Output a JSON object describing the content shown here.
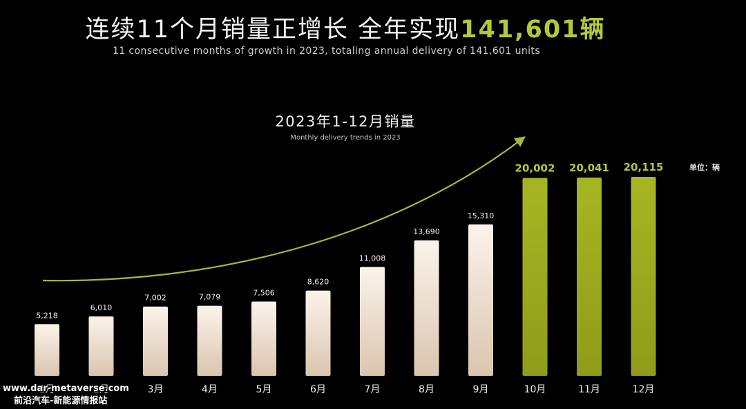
{
  "header": {
    "headline_main": "连续11个月销量正增长  全年实现",
    "headline_highlight": "141,601",
    "headline_suffix": "辆",
    "subheadline": "11 consecutive months of growth in 2023, totaling annual delivery of 141,601 units"
  },
  "watermark": {
    "line1": "www.dar-metaverse.com",
    "line2": "前沿汽车-新能源情报站"
  },
  "colors": {
    "background": "#000000",
    "accent": "#b6c83a",
    "bar_light_top": "#fbf3ea",
    "bar_light_bottom": "#ddc8b3",
    "bar_highlight": "#9bab1d"
  },
  "chart_data": {
    "type": "bar",
    "title": "2023年1-12月销量",
    "subtitle": "Monthly delivery trends in 2023",
    "unit_label": "单位：辆",
    "categories": [
      "1月",
      "2月",
      "3月",
      "4月",
      "5月",
      "6月",
      "7月",
      "8月",
      "9月",
      "10月",
      "11月",
      "12月"
    ],
    "values": [
      5218,
      6010,
      7002,
      7079,
      7506,
      8620,
      11008,
      13690,
      15310,
      20002,
      20041,
      20115
    ],
    "value_labels": [
      "5,218",
      "6,010",
      "7,002",
      "7,079",
      "7,506",
      "8,620",
      "11,008",
      "13,690",
      "15,310",
      "20,002",
      "20,041",
      "20,115"
    ],
    "highlight_from_index": 9,
    "trend_arrow": true,
    "grid": false,
    "legend": "none",
    "ylim": [
      0,
      22000
    ]
  }
}
